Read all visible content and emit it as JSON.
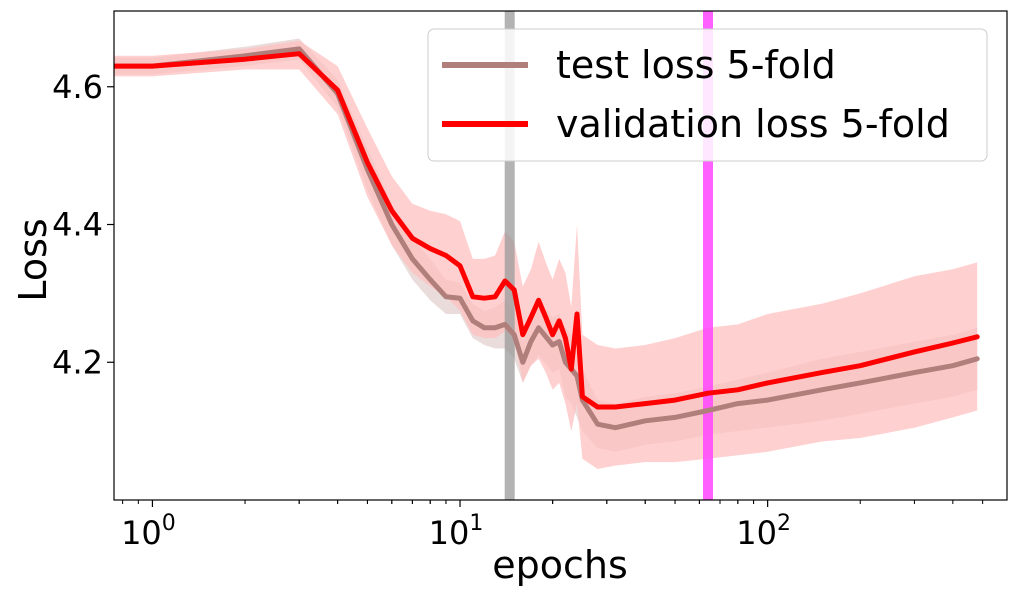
{
  "chart_data": {
    "type": "line",
    "title": "",
    "xlabel": "epochs",
    "ylabel": "Loss",
    "xscale": "log",
    "xlim": [
      0.75,
      600
    ],
    "ylim": [
      4.0,
      4.71
    ],
    "grid": false,
    "legend_position": "top-right",
    "x_ticks": [
      {
        "base": "10",
        "exp": "0",
        "value": 1
      },
      {
        "base": "10",
        "exp": "1",
        "value": 10
      },
      {
        "base": "10",
        "exp": "2",
        "value": 100
      }
    ],
    "y_ticks": [
      {
        "label": "4.2",
        "value": 4.2
      },
      {
        "label": "4.4",
        "value": 4.4
      },
      {
        "label": "4.6",
        "value": 4.6
      }
    ],
    "vertical_markers": [
      {
        "name": "gray-marker",
        "x": 14.5,
        "color": "#999999"
      },
      {
        "name": "magenta-marker",
        "x": 64,
        "color": "#ff44ff"
      }
    ],
    "series": [
      {
        "name": "test loss 5-fold",
        "color": "#b07f7b",
        "band_color": "#d8c0be",
        "points": [
          [
            0.75,
            4.63
          ],
          [
            1,
            4.63
          ],
          [
            2,
            4.645
          ],
          [
            3,
            4.655
          ],
          [
            4,
            4.59
          ],
          [
            5,
            4.48
          ],
          [
            6,
            4.4
          ],
          [
            7,
            4.35
          ],
          [
            8,
            4.32
          ],
          [
            9,
            4.295
          ],
          [
            10,
            4.293
          ],
          [
            11,
            4.26
          ],
          [
            12,
            4.25
          ],
          [
            13,
            4.25
          ],
          [
            14,
            4.255
          ],
          [
            15,
            4.24
          ],
          [
            16,
            4.2
          ],
          [
            17,
            4.23
          ],
          [
            18,
            4.25
          ],
          [
            20,
            4.225
          ],
          [
            21,
            4.23
          ],
          [
            22,
            4.2
          ],
          [
            23,
            4.19
          ],
          [
            24,
            4.18
          ],
          [
            25,
            4.145
          ],
          [
            28,
            4.11
          ],
          [
            32,
            4.105
          ],
          [
            40,
            4.115
          ],
          [
            50,
            4.12
          ],
          [
            64,
            4.13
          ],
          [
            80,
            4.14
          ],
          [
            100,
            4.145
          ],
          [
            150,
            4.16
          ],
          [
            200,
            4.17
          ],
          [
            300,
            4.185
          ],
          [
            400,
            4.195
          ],
          [
            480,
            4.205
          ]
        ],
        "band": [
          [
            0.75,
            4.618,
            4.642
          ],
          [
            1,
            4.618,
            4.642
          ],
          [
            2,
            4.63,
            4.658
          ],
          [
            3,
            4.64,
            4.67
          ],
          [
            4,
            4.57,
            4.61
          ],
          [
            5,
            4.45,
            4.51
          ],
          [
            6,
            4.37,
            4.43
          ],
          [
            7,
            4.32,
            4.38
          ],
          [
            8,
            4.29,
            4.35
          ],
          [
            9,
            4.27,
            4.32
          ],
          [
            10,
            4.27,
            4.315
          ],
          [
            11,
            4.235,
            4.285
          ],
          [
            12,
            4.225,
            4.275
          ],
          [
            13,
            4.22,
            4.28
          ],
          [
            14,
            4.22,
            4.29
          ],
          [
            15,
            4.205,
            4.275
          ],
          [
            16,
            4.17,
            4.23
          ],
          [
            17,
            4.195,
            4.265
          ],
          [
            18,
            4.21,
            4.29
          ],
          [
            20,
            4.185,
            4.265
          ],
          [
            21,
            4.19,
            4.27
          ],
          [
            22,
            4.15,
            4.25
          ],
          [
            23,
            4.14,
            4.24
          ],
          [
            24,
            4.12,
            4.24
          ],
          [
            25,
            4.1,
            4.19
          ],
          [
            28,
            4.075,
            4.145
          ],
          [
            32,
            4.07,
            4.14
          ],
          [
            40,
            4.08,
            4.15
          ],
          [
            50,
            4.085,
            4.155
          ],
          [
            64,
            4.095,
            4.165
          ],
          [
            80,
            4.1,
            4.175
          ],
          [
            100,
            4.105,
            4.185
          ],
          [
            150,
            4.115,
            4.205
          ],
          [
            200,
            4.125,
            4.215
          ],
          [
            300,
            4.14,
            4.23
          ],
          [
            400,
            4.15,
            4.24
          ],
          [
            480,
            4.16,
            4.25
          ]
        ]
      },
      {
        "name": "validation loss 5-fold",
        "color": "#ff0000",
        "band_color": "#ffc0c0",
        "points": [
          [
            0.75,
            4.63
          ],
          [
            1,
            4.63
          ],
          [
            2,
            4.64
          ],
          [
            3,
            4.648
          ],
          [
            4,
            4.595
          ],
          [
            5,
            4.49
          ],
          [
            6,
            4.42
          ],
          [
            7,
            4.38
          ],
          [
            8,
            4.365
          ],
          [
            9,
            4.355
          ],
          [
            10,
            4.34
          ],
          [
            11,
            4.295
          ],
          [
            12,
            4.293
          ],
          [
            13,
            4.295
          ],
          [
            14,
            4.318
          ],
          [
            15,
            4.305
          ],
          [
            16,
            4.24
          ],
          [
            17,
            4.265
          ],
          [
            18,
            4.29
          ],
          [
            19,
            4.265
          ],
          [
            20,
            4.24
          ],
          [
            21,
            4.26
          ],
          [
            22,
            4.235
          ],
          [
            23,
            4.19
          ],
          [
            24,
            4.27
          ],
          [
            25,
            4.15
          ],
          [
            28,
            4.135
          ],
          [
            32,
            4.135
          ],
          [
            40,
            4.14
          ],
          [
            50,
            4.145
          ],
          [
            64,
            4.155
          ],
          [
            80,
            4.16
          ],
          [
            100,
            4.17
          ],
          [
            150,
            4.185
          ],
          [
            200,
            4.195
          ],
          [
            300,
            4.215
          ],
          [
            400,
            4.228
          ],
          [
            480,
            4.237
          ]
        ],
        "band": [
          [
            0.75,
            4.615,
            4.645
          ],
          [
            1,
            4.615,
            4.645
          ],
          [
            2,
            4.625,
            4.655
          ],
          [
            3,
            4.625,
            4.667
          ],
          [
            4,
            4.56,
            4.63
          ],
          [
            5,
            4.44,
            4.54
          ],
          [
            6,
            4.37,
            4.47
          ],
          [
            7,
            4.33,
            4.43
          ],
          [
            8,
            4.31,
            4.42
          ],
          [
            9,
            4.295,
            4.415
          ],
          [
            10,
            4.275,
            4.405
          ],
          [
            11,
            4.24,
            4.35
          ],
          [
            12,
            4.235,
            4.35
          ],
          [
            13,
            4.235,
            4.355
          ],
          [
            14,
            4.245,
            4.39
          ],
          [
            15,
            4.235,
            4.375
          ],
          [
            16,
            4.17,
            4.31
          ],
          [
            17,
            4.195,
            4.335
          ],
          [
            18,
            4.205,
            4.375
          ],
          [
            19,
            4.185,
            4.345
          ],
          [
            20,
            4.16,
            4.32
          ],
          [
            21,
            4.17,
            4.35
          ],
          [
            22,
            4.14,
            4.33
          ],
          [
            23,
            4.1,
            4.28
          ],
          [
            24,
            4.14,
            4.4
          ],
          [
            25,
            4.06,
            4.24
          ],
          [
            28,
            4.045,
            4.225
          ],
          [
            32,
            4.05,
            4.22
          ],
          [
            40,
            4.055,
            4.225
          ],
          [
            50,
            4.055,
            4.235
          ],
          [
            64,
            4.06,
            4.25
          ],
          [
            80,
            4.065,
            4.255
          ],
          [
            100,
            4.07,
            4.27
          ],
          [
            150,
            4.085,
            4.285
          ],
          [
            200,
            4.09,
            4.3
          ],
          [
            300,
            4.105,
            4.325
          ],
          [
            400,
            4.12,
            4.335
          ],
          [
            480,
            4.13,
            4.345
          ]
        ]
      }
    ]
  }
}
